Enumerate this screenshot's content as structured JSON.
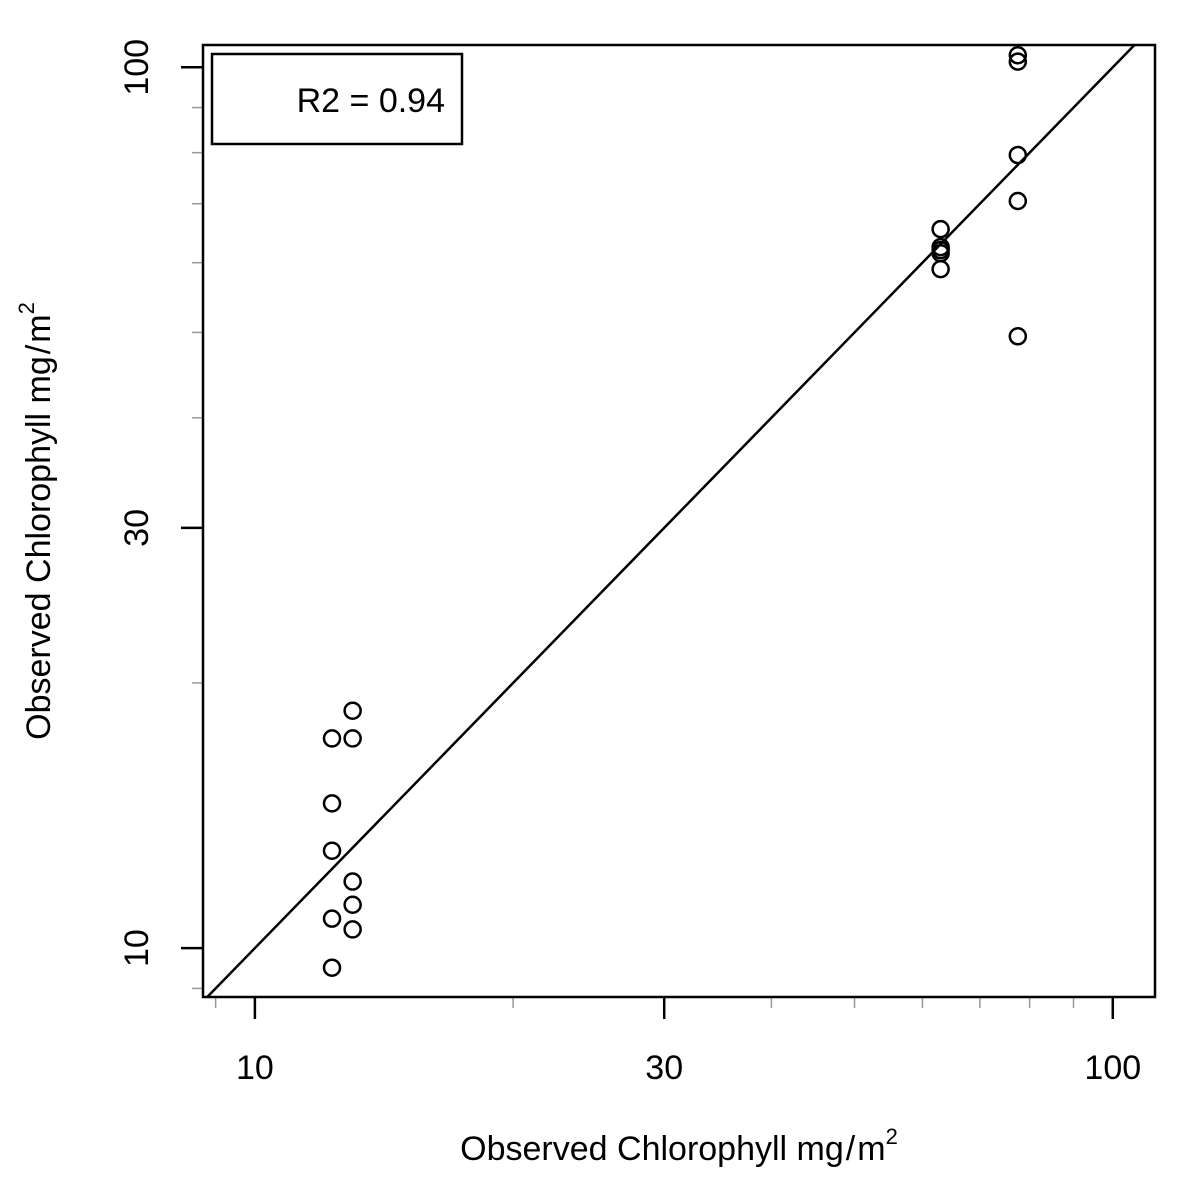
{
  "chart_data": {
    "type": "scatter",
    "x_scale": "log",
    "y_scale": "log",
    "xlim": [
      8.7,
      112
    ],
    "ylim": [
      8.8,
      106
    ],
    "x_ticks": [
      {
        "value": 10,
        "label": "10"
      },
      {
        "value": 30,
        "label": "30"
      },
      {
        "value": 100,
        "label": "100"
      }
    ],
    "y_ticks": [
      {
        "value": 10,
        "label": "10"
      },
      {
        "value": 30,
        "label": "30"
      },
      {
        "value": 100,
        "label": "100"
      }
    ],
    "xlabel": {
      "main": "Observed Chlorophyll  mg",
      "slash": "/",
      "unit": "m",
      "sup": "2"
    },
    "ylabel": {
      "main": "Observed Chlorophyll  mg",
      "slash": "/",
      "unit": "m",
      "sup": "2"
    },
    "legend": {
      "text": "R2 = 0.94",
      "position": "top-left"
    },
    "reference_line": {
      "type": "identity",
      "slope": 1,
      "intercept": 0
    },
    "points": [
      {
        "x": 12.3,
        "y": 9.5
      },
      {
        "x": 12.3,
        "y": 10.8
      },
      {
        "x": 12.3,
        "y": 12.9
      },
      {
        "x": 12.3,
        "y": 14.6
      },
      {
        "x": 12.3,
        "y": 17.3
      },
      {
        "x": 13.0,
        "y": 10.5
      },
      {
        "x": 13.0,
        "y": 11.2
      },
      {
        "x": 13.0,
        "y": 11.9
      },
      {
        "x": 13.0,
        "y": 17.3
      },
      {
        "x": 13.0,
        "y": 18.6
      },
      {
        "x": 63.0,
        "y": 59.0
      },
      {
        "x": 63.0,
        "y": 61.5
      },
      {
        "x": 63.0,
        "y": 62.0
      },
      {
        "x": 63.0,
        "y": 62.5
      },
      {
        "x": 63.0,
        "y": 65.5
      },
      {
        "x": 77.5,
        "y": 49.5
      },
      {
        "x": 77.5,
        "y": 70.5
      },
      {
        "x": 77.5,
        "y": 79.5
      },
      {
        "x": 77.5,
        "y": 101.5
      },
      {
        "x": 77.5,
        "y": 103.2
      }
    ]
  }
}
